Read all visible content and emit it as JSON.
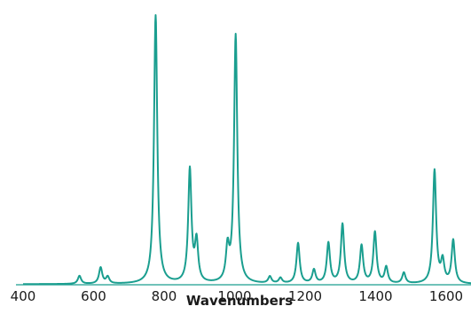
{
  "chart_data": {
    "type": "line",
    "title": "",
    "xlabel": "Wavenumbers",
    "ylabel": "",
    "xlim": [
      400,
      1700
    ],
    "ylim": [
      0,
      1.0
    ],
    "xticks": [
      "400",
      "600",
      "800",
      "1000",
      "1200",
      "1400",
      "1600"
    ],
    "grid": false,
    "legend": "none",
    "series": [
      {
        "color": "#1a9e8f",
        "peaks": [
          {
            "x": 560,
            "y": 0.03
          },
          {
            "x": 620,
            "y": 0.06
          },
          {
            "x": 640,
            "y": 0.025
          },
          {
            "x": 776,
            "y": 1.0
          },
          {
            "x": 873,
            "y": 0.42
          },
          {
            "x": 892,
            "y": 0.15
          },
          {
            "x": 980,
            "y": 0.12
          },
          {
            "x": 1003,
            "y": 0.92
          },
          {
            "x": 1100,
            "y": 0.025
          },
          {
            "x": 1130,
            "y": 0.02
          },
          {
            "x": 1180,
            "y": 0.15
          },
          {
            "x": 1225,
            "y": 0.05
          },
          {
            "x": 1266,
            "y": 0.15
          },
          {
            "x": 1306,
            "y": 0.22
          },
          {
            "x": 1360,
            "y": 0.14
          },
          {
            "x": 1398,
            "y": 0.19
          },
          {
            "x": 1430,
            "y": 0.06
          },
          {
            "x": 1480,
            "y": 0.04
          },
          {
            "x": 1567,
            "y": 0.42
          },
          {
            "x": 1590,
            "y": 0.08
          },
          {
            "x": 1620,
            "y": 0.16
          }
        ]
      }
    ]
  }
}
